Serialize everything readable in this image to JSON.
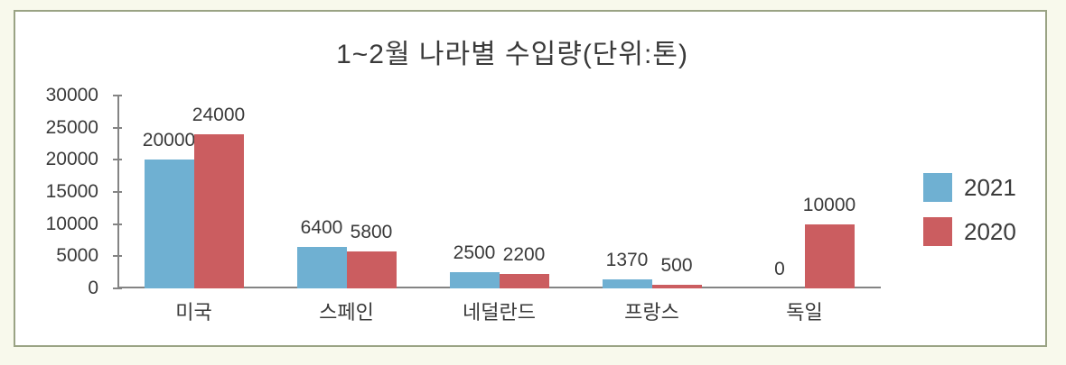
{
  "page": {
    "outer_background": "#f8f9ec",
    "frame_border_color": "#9aa384",
    "frame_background": "#ffffff",
    "axis_color": "#848484",
    "text_color": "#3a3a3a"
  },
  "chart_data": {
    "type": "bar",
    "title": "1~2월  나라별  수입량(단위:톤)",
    "categories": [
      "미국",
      "스페인",
      "네덜란드",
      "프랑스",
      "독일"
    ],
    "series": [
      {
        "name": "2021",
        "color": "#6fb0d2",
        "values": [
          20000,
          6400,
          2500,
          1370,
          0
        ]
      },
      {
        "name": "2020",
        "color": "#cb5d60",
        "values": [
          24000,
          5800,
          2200,
          500,
          10000
        ]
      }
    ],
    "ylim": [
      0,
      30000
    ],
    "yticks": [
      0,
      5000,
      10000,
      15000,
      20000,
      25000,
      30000
    ],
    "data_labels": true,
    "grid": false,
    "legend_position": "right",
    "xlabel": "",
    "ylabel": ""
  }
}
